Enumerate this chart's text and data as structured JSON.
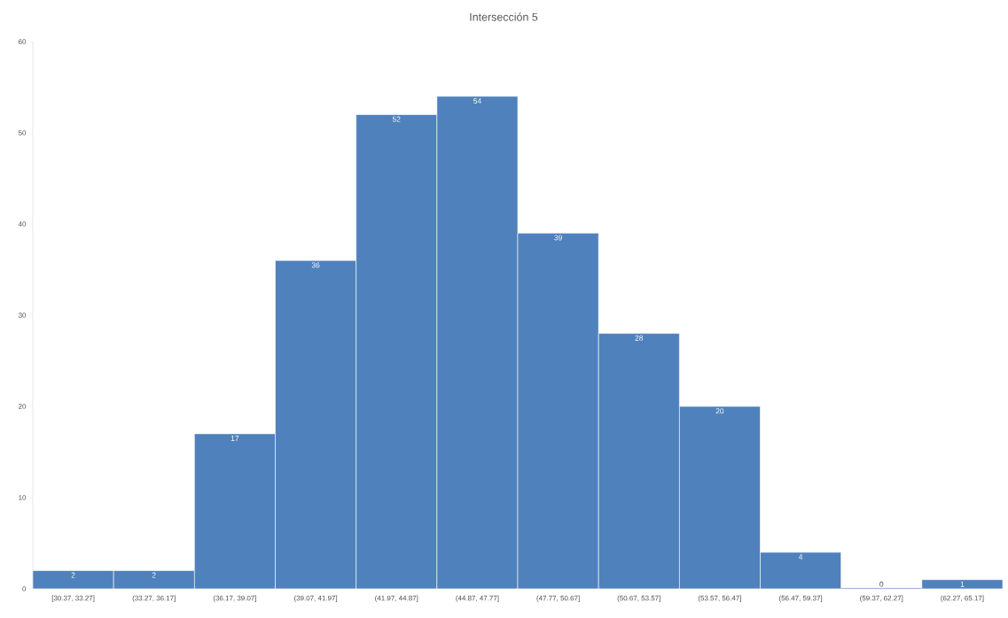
{
  "chart_data": {
    "type": "bar",
    "title": "Intersección 5",
    "categories": [
      "[30.37, 33.27]",
      "(33.27, 36.17]",
      "(36.17, 39.07]",
      "(39.07, 41.97]",
      "(41.97, 44.87]",
      "(44.87, 47.77]",
      "(47.77, 50.67]",
      "(50.67, 53.57]",
      "(53.57, 56.47]",
      "(56.47, 59.37]",
      "(59.37, 62.27]",
      "(62.27, 65.17]"
    ],
    "values": [
      2,
      2,
      17,
      36,
      52,
      54,
      39,
      28,
      20,
      4,
      0,
      1
    ],
    "color": "#4f81bd",
    "ylim": [
      0,
      60
    ],
    "yticks": [
      0,
      10,
      20,
      30,
      40,
      50,
      60
    ],
    "grid": false,
    "data_labels": true
  }
}
